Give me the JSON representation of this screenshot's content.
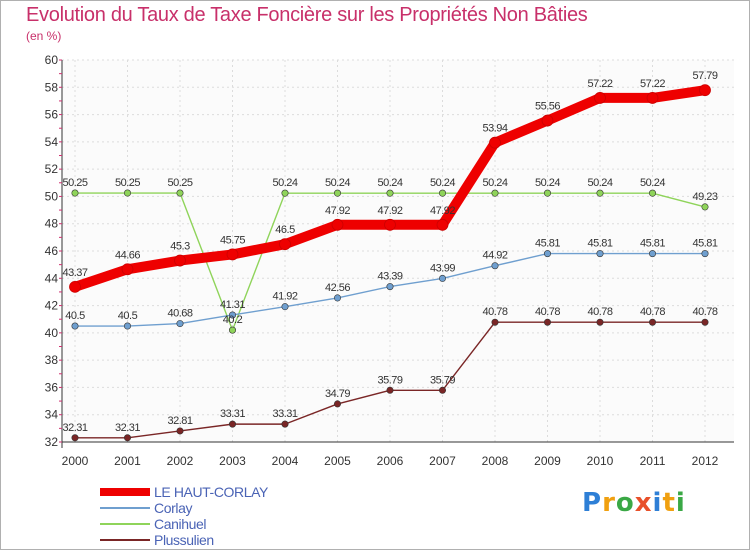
{
  "chart_data": {
    "type": "line",
    "title": "Evolution du Taux de Taxe Foncière sur les Propriétés Non Bâties",
    "subtitle": "(en %)",
    "xlabel": "",
    "ylabel": "(en %)",
    "ylim": [
      32,
      60
    ],
    "yticks": [
      32,
      34,
      36,
      38,
      40,
      42,
      44,
      46,
      48,
      50,
      52,
      54,
      56,
      58,
      60
    ],
    "categories": [
      "2000",
      "2001",
      "2002",
      "2003",
      "2004",
      "2005",
      "2006",
      "2007",
      "2008",
      "2009",
      "2010",
      "2011",
      "2012"
    ],
    "grid": true,
    "legend_position": "bottom-left",
    "series": [
      {
        "name": "LE HAUT-CORLAY",
        "color": "#ee0000",
        "values": [
          43.37,
          44.66,
          45.3,
          45.75,
          46.5,
          47.92,
          47.92,
          47.92,
          53.94,
          55.56,
          57.22,
          57.22,
          57.79
        ],
        "labels": [
          "43.37",
          "44.66",
          "45.3",
          "45.75",
          "46.5",
          "47.92",
          "47.92",
          "47.92",
          "53.94",
          "55.56",
          "57.22",
          "57.22",
          "57.79"
        ]
      },
      {
        "name": "Corlay",
        "color": "#6f9fcf",
        "values": [
          40.5,
          40.5,
          40.68,
          41.31,
          41.92,
          42.56,
          43.39,
          43.99,
          44.92,
          45.81,
          45.81,
          45.81,
          45.81
        ],
        "labels": [
          "40.5",
          "40.5",
          "40.68",
          "41.31",
          "41.92",
          "42.56",
          "43.39",
          "43.99",
          "44.92",
          "45.81",
          "45.81",
          "45.81",
          "45.81"
        ]
      },
      {
        "name": "Canihuel",
        "color": "#8fd45a",
        "values": [
          50.25,
          50.25,
          50.25,
          40.2,
          50.24,
          50.24,
          50.24,
          50.24,
          50.24,
          50.24,
          50.24,
          50.24,
          49.23
        ],
        "labels": [
          "50.25",
          "50.25",
          "50.25",
          "40.2",
          "50.24",
          "50.24",
          "50.24",
          "50.24",
          "50.24",
          "50.24",
          "50.24",
          "50.24",
          "49.23"
        ]
      },
      {
        "name": "Plussulien",
        "color": "#7a2626",
        "values": [
          32.31,
          32.31,
          32.81,
          33.31,
          33.31,
          34.79,
          35.79,
          35.79,
          40.78,
          40.78,
          40.78,
          40.78,
          40.78
        ],
        "labels": [
          "32.31",
          "32.31",
          "32.81",
          "33.31",
          "33.31",
          "34.79",
          "35.79",
          "35.79",
          "40.78",
          "40.78",
          "40.78",
          "40.78",
          "40.78"
        ]
      }
    ]
  },
  "brand": {
    "letters": [
      "P",
      "r",
      "o",
      "x",
      "i",
      "t",
      "i"
    ],
    "colors": [
      "#2e7fd6",
      "#f0a010",
      "#3aa845",
      "#e8502a",
      "#2e7fd6",
      "#f0a010",
      "#3aa845"
    ]
  }
}
